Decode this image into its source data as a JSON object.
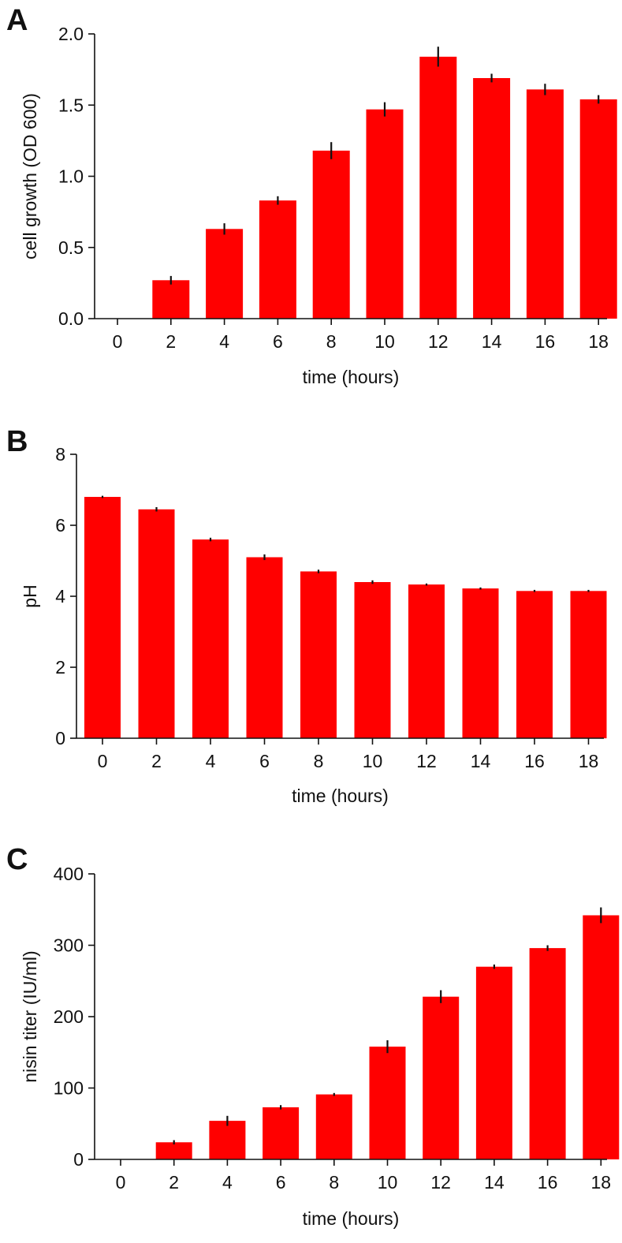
{
  "figure": {
    "panels": [
      {
        "letter": "A"
      },
      {
        "letter": "B"
      },
      {
        "letter": "C"
      }
    ]
  },
  "colors": {
    "bar": "#ff0000",
    "axis": "#111111",
    "error_bar": "#111111"
  },
  "chart_data": [
    {
      "type": "bar",
      "panel": "A",
      "title": "",
      "xlabel": "time (hours)",
      "ylabel": "cell growth (OD 600)",
      "categories": [
        "0",
        "2",
        "4",
        "6",
        "8",
        "10",
        "12",
        "14",
        "16",
        "18"
      ],
      "values": [
        0,
        0.27,
        0.63,
        0.83,
        1.18,
        1.47,
        1.84,
        1.69,
        1.61,
        1.54
      ],
      "errors": [
        0,
        0.03,
        0.04,
        0.03,
        0.06,
        0.05,
        0.07,
        0.03,
        0.04,
        0.03
      ],
      "ylim": [
        0,
        2.0
      ],
      "yticks": [
        "0.0",
        "0.5",
        "1.0",
        "1.5",
        "2.0"
      ],
      "ytick_values": [
        0,
        0.5,
        1.0,
        1.5,
        2.0
      ],
      "grid": false,
      "legend": "none"
    },
    {
      "type": "bar",
      "panel": "B",
      "title": "",
      "xlabel": "time (hours)",
      "ylabel": "pH",
      "categories": [
        "0",
        "2",
        "4",
        "6",
        "8",
        "10",
        "12",
        "14",
        "16",
        "18"
      ],
      "values": [
        6.8,
        6.45,
        5.6,
        5.1,
        4.7,
        4.4,
        4.33,
        4.22,
        4.15,
        4.15
      ],
      "errors": [
        0.03,
        0.06,
        0.05,
        0.08,
        0.05,
        0.05,
        0.03,
        0.03,
        0.03,
        0.03
      ],
      "ylim": [
        0,
        8
      ],
      "yticks": [
        "0",
        "2",
        "4",
        "6",
        "8"
      ],
      "ytick_values": [
        0,
        2,
        4,
        6,
        8
      ],
      "grid": false,
      "legend": "none"
    },
    {
      "type": "bar",
      "panel": "C",
      "title": "",
      "xlabel": "time (hours)",
      "ylabel": "nisin titer (IU/ml)",
      "categories": [
        "0",
        "2",
        "4",
        "6",
        "8",
        "10",
        "12",
        "14",
        "16",
        "18"
      ],
      "values": [
        0,
        24,
        54,
        73,
        91,
        158,
        228,
        270,
        296,
        342
      ],
      "errors": [
        0,
        3,
        7,
        3,
        2,
        9,
        9,
        3,
        4,
        11
      ],
      "ylim": [
        0,
        400
      ],
      "yticks": [
        "0",
        "100",
        "200",
        "300",
        "400"
      ],
      "ytick_values": [
        0,
        100,
        200,
        300,
        400
      ],
      "grid": false,
      "legend": "none"
    }
  ]
}
